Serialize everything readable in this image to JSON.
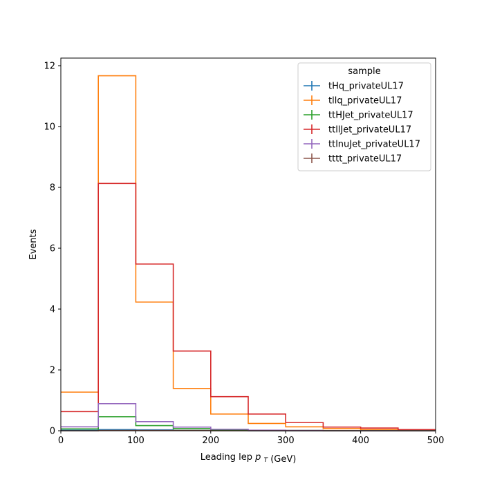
{
  "chart_data": {
    "type": "step-histogram",
    "xlabel": "Leading lep",
    "xlabel_symbol": "p",
    "xlabel_subscript": "T",
    "xlabel_unit": "(GeV)",
    "ylabel": "Events",
    "xlim": [
      0,
      500
    ],
    "ylim": [
      0,
      12.25
    ],
    "xticks": [
      0,
      100,
      200,
      300,
      400,
      500
    ],
    "yticks": [
      0,
      2,
      4,
      6,
      8,
      10,
      12
    ],
    "bin_edges": [
      0,
      50,
      100,
      150,
      200,
      250,
      300,
      350,
      400,
      450,
      500
    ],
    "grid": false,
    "legend": {
      "title": "sample",
      "placement": "top-right"
    },
    "series": [
      {
        "name": "tHq_privateUL17",
        "color": "#1f77b4",
        "values": [
          0.02,
          0.04,
          0.03,
          0.01,
          0.01,
          0.0,
          0.0,
          0.0,
          0.0,
          0.0
        ]
      },
      {
        "name": "tllq_privateUL17",
        "color": "#ff7f0e",
        "values": [
          1.27,
          11.67,
          4.23,
          1.39,
          0.55,
          0.24,
          0.13,
          0.07,
          0.04,
          0.02
        ]
      },
      {
        "name": "ttHJet_privateUL17",
        "color": "#2ca02c",
        "values": [
          0.06,
          0.46,
          0.17,
          0.07,
          0.03,
          0.01,
          0.01,
          0.0,
          0.0,
          0.0
        ]
      },
      {
        "name": "ttllJet_privateUL17",
        "color": "#d62728",
        "values": [
          0.63,
          8.13,
          5.48,
          2.62,
          1.12,
          0.55,
          0.27,
          0.12,
          0.09,
          0.04
        ]
      },
      {
        "name": "ttlnuJet_privateUL17",
        "color": "#9467bd",
        "values": [
          0.13,
          0.89,
          0.3,
          0.12,
          0.05,
          0.02,
          0.01,
          0.0,
          0.0,
          0.0
        ]
      },
      {
        "name": "tttt_privateUL17",
        "color": "#8c564b",
        "values": [
          0.0,
          0.01,
          0.01,
          0.01,
          0.0,
          0.0,
          0.0,
          0.0,
          0.0,
          0.0
        ]
      }
    ]
  }
}
